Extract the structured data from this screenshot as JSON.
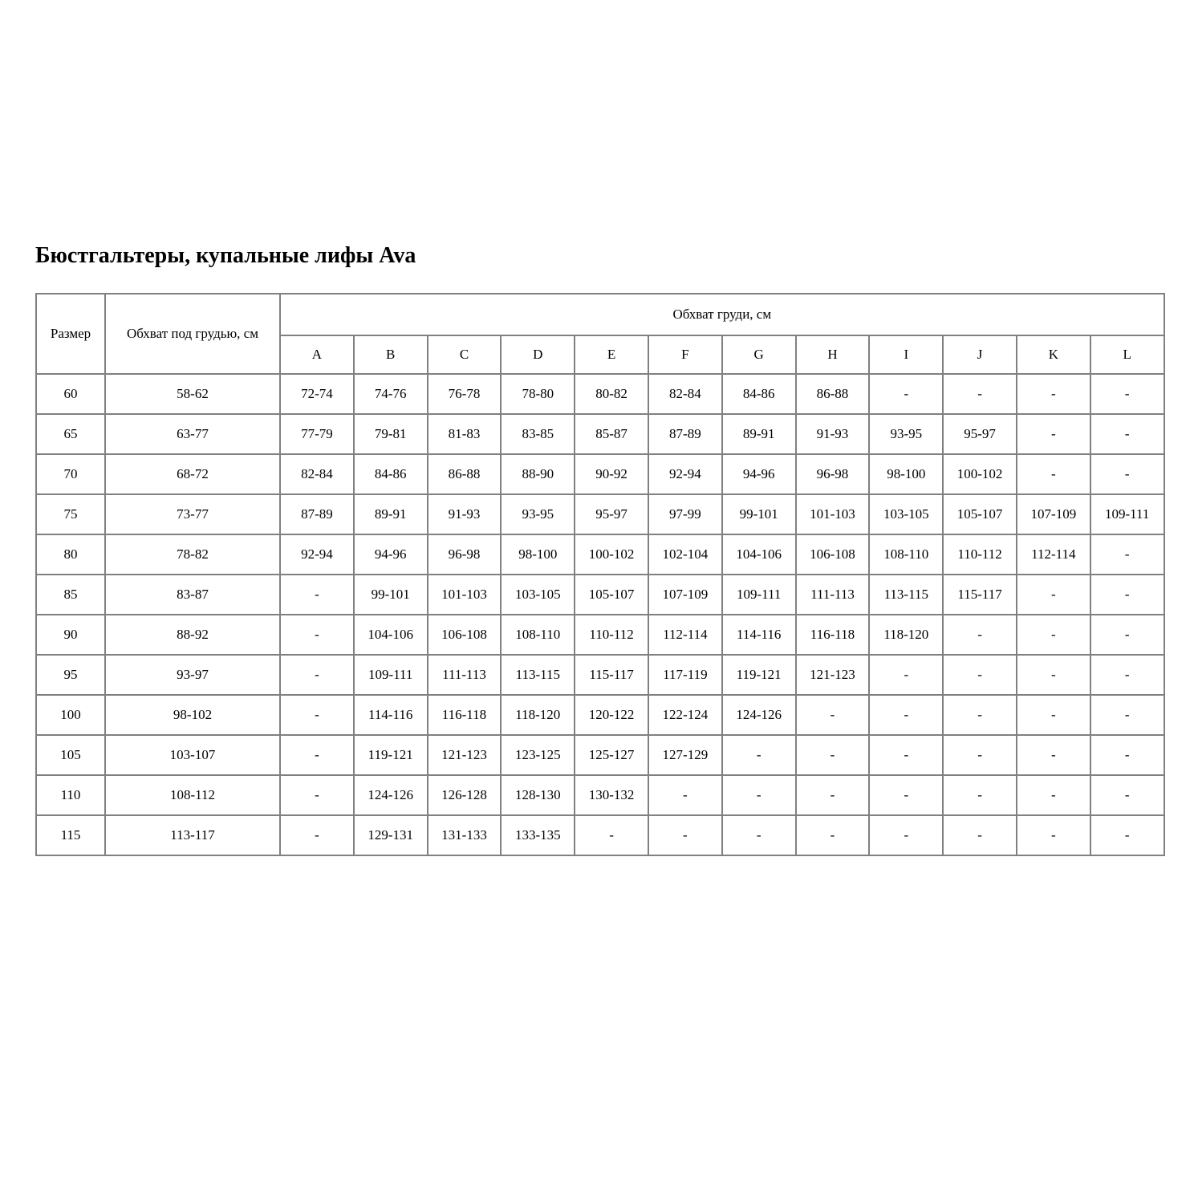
{
  "page": {
    "title": "Бюстгальтеры, купальные лифы Ava"
  },
  "colors": {
    "background": "#ffffff",
    "border": "#808080",
    "text": "#000000"
  },
  "table": {
    "headers": {
      "size": "Размер",
      "underbust": "Обхват под грудью, см",
      "bust": "Обхват груди, см"
    },
    "cup_columns": [
      "A",
      "B",
      "C",
      "D",
      "E",
      "F",
      "G",
      "H",
      "I",
      "J",
      "K",
      "L"
    ],
    "rows": [
      {
        "size": "60",
        "underbust": "58-62",
        "cups": [
          "72-74",
          "74-76",
          "76-78",
          "78-80",
          "80-82",
          "82-84",
          "84-86",
          "86-88",
          "-",
          "-",
          "-",
          "-"
        ]
      },
      {
        "size": "65",
        "underbust": "63-77",
        "cups": [
          "77-79",
          "79-81",
          "81-83",
          "83-85",
          "85-87",
          "87-89",
          "89-91",
          "91-93",
          "93-95",
          "95-97",
          "-",
          "-"
        ]
      },
      {
        "size": "70",
        "underbust": "68-72",
        "cups": [
          "82-84",
          "84-86",
          "86-88",
          "88-90",
          "90-92",
          "92-94",
          "94-96",
          "96-98",
          "98-100",
          "100-102",
          "-",
          "-"
        ]
      },
      {
        "size": "75",
        "underbust": "73-77",
        "cups": [
          "87-89",
          "89-91",
          "91-93",
          "93-95",
          "95-97",
          "97-99",
          "99-101",
          "101-103",
          "103-105",
          "105-107",
          "107-109",
          "109-111"
        ]
      },
      {
        "size": "80",
        "underbust": "78-82",
        "cups": [
          "92-94",
          "94-96",
          "96-98",
          "98-100",
          "100-102",
          "102-104",
          "104-106",
          "106-108",
          "108-110",
          "110-112",
          "112-114",
          "-"
        ]
      },
      {
        "size": "85",
        "underbust": "83-87",
        "cups": [
          "-",
          "99-101",
          "101-103",
          "103-105",
          "105-107",
          "107-109",
          "109-111",
          "111-113",
          "113-115",
          "115-117",
          "-",
          "-"
        ]
      },
      {
        "size": "90",
        "underbust": "88-92",
        "cups": [
          "-",
          "104-106",
          "106-108",
          "108-110",
          "110-112",
          "112-114",
          "114-116",
          "116-118",
          "118-120",
          "-",
          "-",
          "-"
        ]
      },
      {
        "size": "95",
        "underbust": "93-97",
        "cups": [
          "-",
          "109-111",
          "111-113",
          "113-115",
          "115-117",
          "117-119",
          "119-121",
          "121-123",
          "-",
          "-",
          "-",
          "-"
        ]
      },
      {
        "size": "100",
        "underbust": "98-102",
        "cups": [
          "-",
          "114-116",
          "116-118",
          "118-120",
          "120-122",
          "122-124",
          "124-126",
          "-",
          "-",
          "-",
          "-",
          "-"
        ]
      },
      {
        "size": "105",
        "underbust": "103-107",
        "cups": [
          "-",
          "119-121",
          "121-123",
          "123-125",
          "125-127",
          "127-129",
          "-",
          "-",
          "-",
          "-",
          "-",
          "-"
        ]
      },
      {
        "size": "110",
        "underbust": "108-112",
        "cups": [
          "-",
          "124-126",
          "126-128",
          "128-130",
          "130-132",
          "-",
          "-",
          "-",
          "-",
          "-",
          "-",
          "-"
        ]
      },
      {
        "size": "115",
        "underbust": "113-117",
        "cups": [
          "-",
          "129-131",
          "131-133",
          "133-135",
          "-",
          "-",
          "-",
          "-",
          "-",
          "-",
          "-",
          "-"
        ]
      }
    ]
  }
}
